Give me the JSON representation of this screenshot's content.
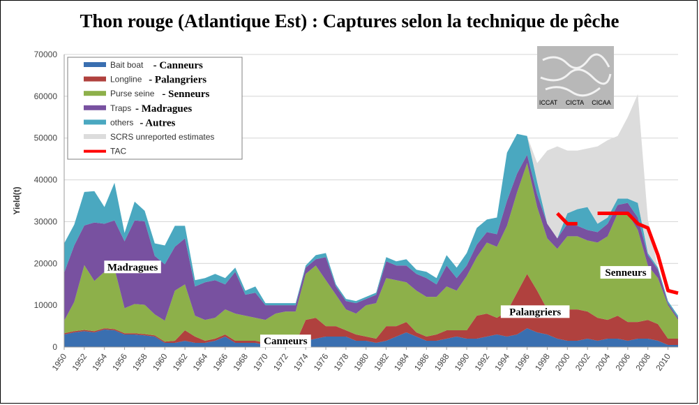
{
  "chart_data": {
    "type": "area",
    "title": "Thon rouge (Atlantique Est) : Captures selon la technique de pêche",
    "ylabel": "Yield(t)",
    "xlabel": "",
    "ylim": [
      0,
      70000
    ],
    "yticks": [
      "0",
      "10000",
      "20000",
      "30000",
      "40000",
      "50000",
      "60000",
      "70000"
    ],
    "yticks_values": [
      0,
      10000,
      20000,
      30000,
      40000,
      50000,
      60000,
      70000
    ],
    "xlim": [
      1950,
      2011
    ],
    "xticks": [
      "1950",
      "1952",
      "1954",
      "1956",
      "1958",
      "1960",
      "1962",
      "1964",
      "1966",
      "1968",
      "1970",
      "1972",
      "1974",
      "1976",
      "1978",
      "1980",
      "1982",
      "1984",
      "1986",
      "1988",
      "1990",
      "1992",
      "1994",
      "1996",
      "1998",
      "2000",
      "2002",
      "2004",
      "2006",
      "2008",
      "2010"
    ],
    "grid": true,
    "legend_position": "top-left",
    "x": [
      1950,
      1951,
      1952,
      1953,
      1954,
      1955,
      1956,
      1957,
      1958,
      1959,
      1960,
      1961,
      1962,
      1963,
      1964,
      1965,
      1966,
      1967,
      1968,
      1969,
      1970,
      1971,
      1972,
      1973,
      1974,
      1975,
      1976,
      1977,
      1978,
      1979,
      1980,
      1981,
      1982,
      1983,
      1984,
      1985,
      1986,
      1987,
      1988,
      1989,
      1990,
      1991,
      1992,
      1993,
      1994,
      1995,
      1996,
      1997,
      1998,
      1999,
      2000,
      2001,
      2002,
      2003,
      2004,
      2005,
      2006,
      2007,
      2008,
      2009,
      2010,
      2011
    ],
    "series": [
      {
        "name": "Bait boat",
        "fr": "Canneurs",
        "color": "#3a6fb0",
        "values": [
          3000,
          3500,
          3800,
          3500,
          4200,
          4000,
          3000,
          3000,
          2800,
          2500,
          1000,
          1000,
          1500,
          1000,
          1000,
          1500,
          2500,
          1000,
          1000,
          1000,
          500,
          500,
          500,
          500,
          1500,
          2000,
          2500,
          2500,
          2500,
          1500,
          1500,
          1000,
          1500,
          2500,
          3500,
          2500,
          1500,
          1500,
          2000,
          2500,
          2000,
          2000,
          2500,
          3000,
          2500,
          3000,
          4500,
          3500,
          3000,
          2000,
          1500,
          1500,
          2000,
          1500,
          2000,
          2000,
          1500,
          2000,
          2000,
          1500,
          500,
          500
        ]
      },
      {
        "name": "Longline",
        "fr": "Palangriers",
        "color": "#b0413e",
        "values": [
          300,
          300,
          300,
          300,
          300,
          300,
          300,
          300,
          300,
          300,
          300,
          500,
          2500,
          1500,
          500,
          500,
          500,
          500,
          500,
          500,
          500,
          500,
          500,
          500,
          5000,
          5000,
          2500,
          2500,
          1500,
          1500,
          1000,
          1000,
          3500,
          2500,
          2500,
          1000,
          1000,
          1500,
          2000,
          1500,
          2000,
          5500,
          5500,
          4000,
          6000,
          10000,
          13000,
          10000,
          6000,
          6000,
          7500,
          7500,
          6500,
          5500,
          4500,
          5500,
          4500,
          4000,
          4500,
          4000,
          1500,
          1500
        ]
      },
      {
        "name": "Purse seine",
        "fr": "Senneurs",
        "color": "#8db04a",
        "values": [
          3000,
          7000,
          15500,
          12000,
          13500,
          14500,
          6000,
          7000,
          7000,
          5000,
          5000,
          12000,
          11000,
          5000,
          5000,
          5000,
          6000,
          6500,
          6000,
          5500,
          5500,
          7000,
          7500,
          7500,
          11000,
          12500,
          11000,
          7500,
          5000,
          5000,
          7500,
          8500,
          11500,
          11000,
          9500,
          10000,
          9500,
          9000,
          10500,
          9500,
          13000,
          14000,
          17000,
          17000,
          20500,
          24000,
          26500,
          20000,
          17000,
          15500,
          17500,
          17500,
          17000,
          18000,
          20000,
          24500,
          26000,
          22000,
          13000,
          11000,
          8000,
          4500
        ]
      },
      {
        "name": "Traps",
        "fr": "Madragues",
        "color": "#7851a0",
        "values": [
          11500,
          13500,
          9500,
          14000,
          11500,
          11500,
          16000,
          20000,
          20000,
          14000,
          13500,
          10500,
          11000,
          7000,
          9000,
          9000,
          6000,
          10000,
          5000,
          6000,
          3500,
          2000,
          1500,
          1500,
          1500,
          1500,
          5500,
          2000,
          2000,
          2500,
          1500,
          2000,
          4000,
          3500,
          4000,
          4000,
          4500,
          3000,
          5000,
          3000,
          2500,
          3000,
          2500,
          3000,
          6000,
          4500,
          2000,
          3000,
          3500,
          2500,
          3000,
          2500,
          2500,
          2500,
          3000,
          2000,
          2500,
          3000,
          2500,
          2000,
          500,
          500
        ]
      },
      {
        "name": "others",
        "fr": "Autres",
        "color": "#4aa8c0",
        "values": [
          7000,
          5000,
          8000,
          7500,
          4000,
          9000,
          2000,
          4500,
          2500,
          3000,
          4500,
          5000,
          3000,
          1500,
          1000,
          1500,
          1500,
          1000,
          1000,
          1500,
          500,
          500,
          500,
          500,
          500,
          1000,
          1000,
          500,
          500,
          500,
          500,
          500,
          1000,
          1000,
          1500,
          1000,
          1500,
          1500,
          2500,
          2500,
          3000,
          4000,
          3000,
          4000,
          11500,
          9500,
          4500,
          3000,
          0,
          0,
          2500,
          4000,
          5500,
          2000,
          1500,
          1500,
          1000,
          3500,
          500,
          500,
          500,
          500
        ]
      },
      {
        "name": "SCRS unreported estimates",
        "fr": "",
        "color": "#dcdcdc",
        "values": [
          0,
          0,
          0,
          0,
          0,
          0,
          0,
          0,
          0,
          0,
          0,
          0,
          0,
          0,
          0,
          0,
          0,
          0,
          0,
          0,
          0,
          0,
          0,
          0,
          0,
          0,
          0,
          0,
          0,
          0,
          0,
          0,
          0,
          0,
          0,
          0,
          0,
          0,
          0,
          0,
          0,
          0,
          0,
          0,
          0,
          0,
          0,
          4500,
          17500,
          22000,
          15000,
          14000,
          14000,
          18500,
          18500,
          15000,
          19500,
          26000,
          8000,
          0,
          0,
          0
        ]
      }
    ],
    "tac": {
      "name": "TAC",
      "color": "#ff0000",
      "segments": [
        {
          "x": [
            1999,
            2000,
            2001
          ],
          "y": [
            32000,
            29500,
            29500
          ]
        },
        {
          "x": [
            2003,
            2004,
            2005,
            2006,
            2007,
            2008,
            2009,
            2010,
            2011
          ],
          "y": [
            32000,
            32000,
            32000,
            32000,
            29500,
            28500,
            22000,
            13500,
            12900
          ]
        }
      ]
    },
    "annotations": [
      {
        "text": "Madragues",
        "x": 1956.8,
        "y": 18500
      },
      {
        "text": "Canneurs",
        "x": 1972.0,
        "y": 800
      },
      {
        "text": "Palangriers",
        "x": 1996.8,
        "y": 7800
      },
      {
        "text": "Senneurs",
        "x": 2005.8,
        "y": 17200
      }
    ]
  },
  "logo": {
    "labels": [
      "ICCAT",
      "CICTA",
      "CICAA"
    ]
  }
}
